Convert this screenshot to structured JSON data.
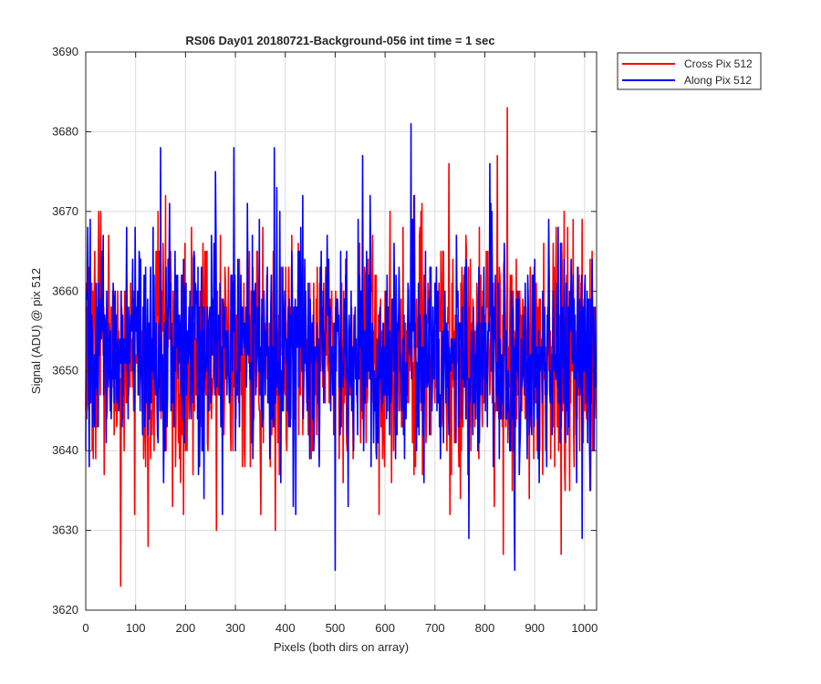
{
  "chart_data": {
    "type": "line",
    "title": "RS06 Day01 20180721-Background-056 int time = 1 sec",
    "xlabel": "Pixels (both dirs on array)",
    "ylabel": "Signal (ADU) @ pix 512",
    "xlim": [
      0,
      1024
    ],
    "ylim": [
      3620,
      3690
    ],
    "xticks": [
      0,
      100,
      200,
      300,
      400,
      500,
      600,
      700,
      800,
      900,
      1000
    ],
    "yticks": [
      3620,
      3630,
      3640,
      3650,
      3660,
      3670,
      3680,
      3690
    ],
    "grid": true,
    "legend_position": "outside-top-right",
    "series": [
      {
        "name": "Cross Pix 512",
        "color": "#ff0000",
        "mean": 3652,
        "stdev": 7.5,
        "n_points": 1024,
        "note_ranges": "values fluctuate mostly between 3635 and 3670",
        "extremes": [
          {
            "x": 70,
            "y": 3623
          },
          {
            "x": 125,
            "y": 3628
          },
          {
            "x": 262,
            "y": 3630
          },
          {
            "x": 380,
            "y": 3630
          },
          {
            "x": 837,
            "y": 3627
          },
          {
            "x": 953,
            "y": 3627
          },
          {
            "x": 845,
            "y": 3683
          },
          {
            "x": 728,
            "y": 3676
          },
          {
            "x": 825,
            "y": 3677
          },
          {
            "x": 160,
            "y": 3672
          },
          {
            "x": 30,
            "y": 3670
          }
        ]
      },
      {
        "name": "Along Pix 512",
        "color": "#0000ff",
        "mean": 3652,
        "stdev": 7.0,
        "n_points": 1024,
        "extremes": [
          {
            "x": 500,
            "y": 3625
          },
          {
            "x": 860,
            "y": 3625
          },
          {
            "x": 768,
            "y": 3629
          },
          {
            "x": 995,
            "y": 3629
          },
          {
            "x": 652,
            "y": 3681
          },
          {
            "x": 378,
            "y": 3678
          },
          {
            "x": 297,
            "y": 3678
          },
          {
            "x": 260,
            "y": 3675
          },
          {
            "x": 555,
            "y": 3677
          },
          {
            "x": 810,
            "y": 3676
          }
        ]
      }
    ]
  }
}
